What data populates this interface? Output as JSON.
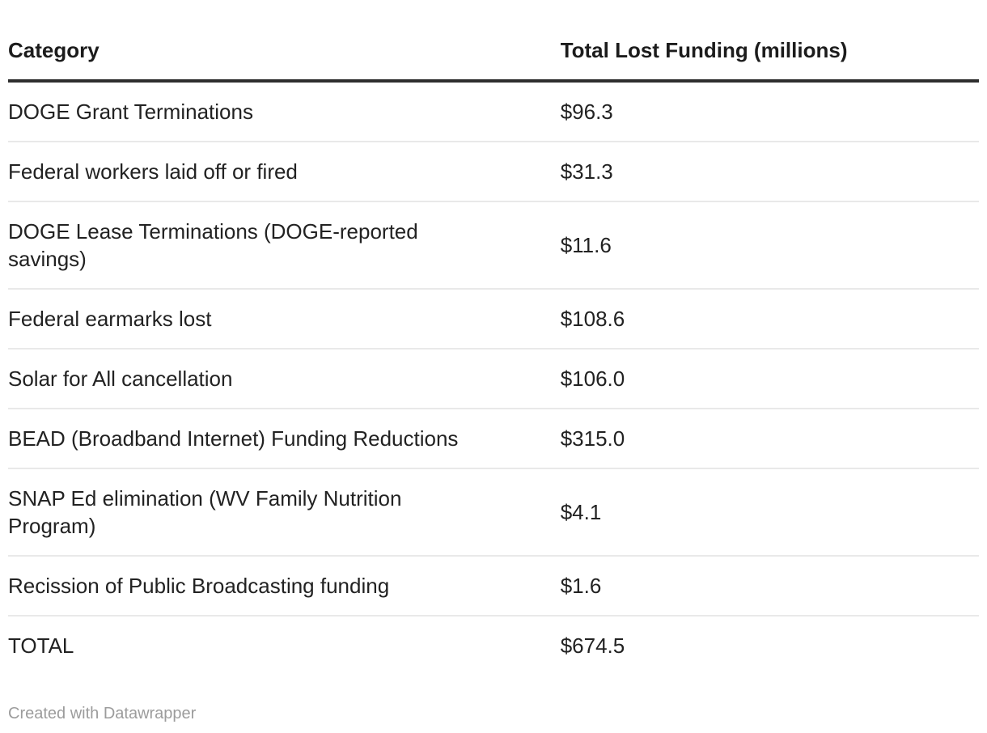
{
  "table": {
    "columns": [
      {
        "label": "Category"
      },
      {
        "label": "Total Lost Funding (millions)"
      }
    ],
    "rows": [
      {
        "category": "DOGE Grant Terminations",
        "value": "$96.3"
      },
      {
        "category": "Federal workers laid off or fired",
        "value": "$31.3"
      },
      {
        "category": "DOGE Lease Terminations (DOGE-reported savings)",
        "value": "$11.6"
      },
      {
        "category": "Federal earmarks lost",
        "value": "$108.6"
      },
      {
        "category": "Solar for All cancellation",
        "value": "$106.0"
      },
      {
        "category": "BEAD (Broadband Internet) Funding Reductions",
        "value": "$315.0"
      },
      {
        "category": "SNAP Ed elimination (WV Family Nutrition Program)",
        "value": "$4.1"
      },
      {
        "category": "Recission of Public Broadcasting funding",
        "value": "$1.6"
      },
      {
        "category": "TOTAL",
        "value": "$674.5"
      }
    ]
  },
  "chart_data": {
    "type": "table",
    "title": "",
    "columns": [
      "Category",
      "Total Lost Funding (millions)"
    ],
    "categories": [
      "DOGE Grant Terminations",
      "Federal workers laid off or fired",
      "DOGE Lease Terminations (DOGE-reported savings)",
      "Federal earmarks lost",
      "Solar for All cancellation",
      "BEAD (Broadband Internet) Funding Reductions",
      "SNAP Ed elimination (WV Family Nutrition Program)",
      "Recission of Public Broadcasting funding",
      "TOTAL"
    ],
    "values": [
      96.3,
      31.3,
      11.6,
      108.6,
      106.0,
      315.0,
      4.1,
      1.6,
      674.5
    ],
    "value_unit": "millions USD"
  },
  "footer": {
    "attribution": "Created with Datawrapper"
  },
  "colors": {
    "background": "#ffffff",
    "text": "#222222",
    "header_rule": "#2e2e2e",
    "row_divider": "#e9e9e9",
    "attribution": "#9c9c9c"
  }
}
